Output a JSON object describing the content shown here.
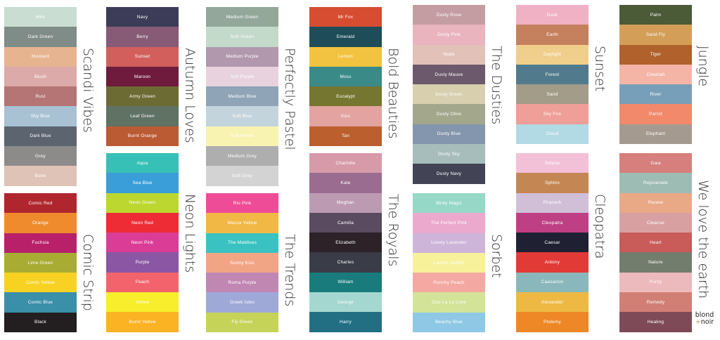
{
  "groups": [
    {
      "title": "Scandi Vibes",
      "swatches": [
        {
          "name": "Mint",
          "color": "#c9ddd3"
        },
        {
          "name": "Dark Green",
          "color": "#7f8c88"
        },
        {
          "name": "Mustard",
          "color": "#e6b48f"
        },
        {
          "name": "Blush",
          "color": "#dcaaa8"
        },
        {
          "name": "Rust",
          "color": "#b47574"
        },
        {
          "name": "Sky Blue",
          "color": "#a8c2d3"
        },
        {
          "name": "Dark Blue",
          "color": "#5c6470"
        },
        {
          "name": "Grey",
          "color": "#8d8b89"
        },
        {
          "name": "Bone",
          "color": "#dfc3b6"
        }
      ]
    },
    {
      "title": "Comic Strip",
      "swatches": [
        {
          "name": "Comic Red",
          "color": "#b0262e"
        },
        {
          "name": "Orange",
          "color": "#ef8b2c"
        },
        {
          "name": "Fuchsia",
          "color": "#b8216a"
        },
        {
          "name": "Lime Green",
          "color": "#a9ac33"
        },
        {
          "name": "Comic Yellow",
          "color": "#f7d223"
        },
        {
          "name": "Comic Blue",
          "color": "#3a8fa9"
        },
        {
          "name": "Black",
          "color": "#231f20"
        }
      ]
    },
    {
      "title": "Autumn Loves",
      "swatches": [
        {
          "name": "Navy",
          "color": "#3c3c59"
        },
        {
          "name": "Berry",
          "color": "#875a76"
        },
        {
          "name": "Sunset",
          "color": "#d25f5b"
        },
        {
          "name": "Maroon",
          "color": "#6f1b3d"
        },
        {
          "name": "Army Green",
          "color": "#6d6b34"
        },
        {
          "name": "Leaf Green",
          "color": "#5f7264"
        },
        {
          "name": "Burnt Orange",
          "color": "#bb5b33"
        }
      ]
    },
    {
      "title": "Neon Lights",
      "swatches": [
        {
          "name": "Aqua",
          "color": "#37c0b6"
        },
        {
          "name": "Sea Blue",
          "color": "#3a9ed8"
        },
        {
          "name": "Neon Green",
          "color": "#bcd72f"
        },
        {
          "name": "Neon Red",
          "color": "#ee2c36"
        },
        {
          "name": "Neon Pink",
          "color": "#db3d96"
        },
        {
          "name": "Purple",
          "color": "#8b56a4"
        },
        {
          "name": "Peach",
          "color": "#f3636b"
        },
        {
          "name": "Yellow",
          "color": "#f8ee2b"
        },
        {
          "name": "Burnt Yellow",
          "color": "#fbb223"
        }
      ]
    },
    {
      "title": "Perfectly Pastel",
      "swatches": [
        {
          "name": "Medium Green",
          "color": "#93a899"
        },
        {
          "name": "Soft Green",
          "color": "#c3d9ca"
        },
        {
          "name": "Medium Purple",
          "color": "#b198ad"
        },
        {
          "name": "Soft Purple",
          "color": "#e7d2dd"
        },
        {
          "name": "Medium Blue",
          "color": "#8fa4b7"
        },
        {
          "name": "Soft Blue",
          "color": "#c3d4dc"
        },
        {
          "name": "Soft Yellow",
          "color": "#f8f3b0"
        },
        {
          "name": "Medium Grey",
          "color": "#aeaeae"
        },
        {
          "name": "Soft Grey",
          "color": "#d3d3d3"
        }
      ]
    },
    {
      "title": "The Trends",
      "swatches": [
        {
          "name": "Rio Pink",
          "color": "#ee4c97"
        },
        {
          "name": "Mecca Yellow",
          "color": "#f1b845"
        },
        {
          "name": "The Maldives",
          "color": "#3ac2c2"
        },
        {
          "name": "Sunny Kiss",
          "color": "#f2a585"
        },
        {
          "name": "Roma Purple",
          "color": "#c087b3"
        },
        {
          "name": "Greek Isles",
          "color": "#9fa9d7"
        },
        {
          "name": "Fiji Green",
          "color": "#c6d359"
        }
      ]
    },
    {
      "title": "Bold Beauties",
      "swatches": [
        {
          "name": "Mr Fox",
          "color": "#d64d32"
        },
        {
          "name": "Emerald",
          "color": "#1e4d59"
        },
        {
          "name": "Lemon",
          "color": "#f1c340"
        },
        {
          "name": "Moss",
          "color": "#3a8a88"
        },
        {
          "name": "Eucalypt",
          "color": "#75762f"
        },
        {
          "name": "Kiss",
          "color": "#e3a3a0"
        },
        {
          "name": "Tan",
          "color": "#bb5f2e"
        }
      ]
    },
    {
      "title": "The Royals",
      "swatches": [
        {
          "name": "Charlotte",
          "color": "#d79aa8"
        },
        {
          "name": "Kate",
          "color": "#9a6c8f"
        },
        {
          "name": "Meghan",
          "color": "#bc9bb2"
        },
        {
          "name": "Camilla",
          "color": "#5b4b60"
        },
        {
          "name": "Elizabeth",
          "color": "#2c2227"
        },
        {
          "name": "Charles",
          "color": "#3a3c47"
        },
        {
          "name": "William",
          "color": "#1a7b7d"
        },
        {
          "name": "George",
          "color": "#a5d7d1"
        },
        {
          "name": "Harry",
          "color": "#226f84"
        }
      ]
    },
    {
      "title": "The Dusties",
      "swatches": [
        {
          "name": "Dusty Rose",
          "color": "#c49da2"
        },
        {
          "name": "Dusty Pink",
          "color": "#e9b4bd"
        },
        {
          "name": "Nude",
          "color": "#e2c2b8"
        },
        {
          "name": "Dusty Mauve",
          "color": "#6c5a6c"
        },
        {
          "name": "Dusty Green",
          "color": "#d7cfae"
        },
        {
          "name": "Dusty Olive",
          "color": "#a3a78b"
        },
        {
          "name": "Dusty Blue",
          "color": "#8496ad"
        },
        {
          "name": "Dusty Sky",
          "color": "#a6bdbb"
        },
        {
          "name": "Dusty Navy",
          "color": "#424456"
        }
      ]
    },
    {
      "title": "Sorbet",
      "swatches": [
        {
          "name": "Minty Magic",
          "color": "#96d8c8"
        },
        {
          "name": "The Perfect Pink",
          "color": "#eba9cd"
        },
        {
          "name": "Lovely Lavender",
          "color": "#cdb5da"
        },
        {
          "name": "Lemon Sorbet",
          "color": "#f6f19a"
        },
        {
          "name": "Punchy Peach",
          "color": "#f3a9a1"
        },
        {
          "name": "Ooo La La Lime",
          "color": "#d3e398"
        },
        {
          "name": "Beachy Blue",
          "color": "#8ec8e4"
        }
      ]
    },
    {
      "title": "Sunset",
      "swatches": [
        {
          "name": "Dusk",
          "color": "#f0b1c5"
        },
        {
          "name": "Earth",
          "color": "#c5805d"
        },
        {
          "name": "Daylight",
          "color": "#f0ce8b"
        },
        {
          "name": "Forest",
          "color": "#517b8c"
        },
        {
          "name": "Sand",
          "color": "#a39c88"
        },
        {
          "name": "Sky Fire",
          "color": "#ef9e98"
        },
        {
          "name": "Cloud",
          "color": "#b2dae4"
        }
      ]
    },
    {
      "title": "Cleopatra",
      "swatches": [
        {
          "name": "Selene",
          "color": "#f3c1d7"
        },
        {
          "name": "Sphinx",
          "color": "#c48753"
        },
        {
          "name": "Pharaoh",
          "color": "#d1bfd8"
        },
        {
          "name": "Cleopatra",
          "color": "#be3f84"
        },
        {
          "name": "Caesar",
          "color": "#1f2132"
        },
        {
          "name": "Antony",
          "color": "#e23a37"
        },
        {
          "name": "Caesarion",
          "color": "#8ab7bb"
        },
        {
          "name": "Alexander",
          "color": "#eeb943"
        },
        {
          "name": "Ptolemy",
          "color": "#ee8726"
        }
      ]
    },
    {
      "title": "Jungle",
      "swatches": [
        {
          "name": "Palm",
          "color": "#4b5a37"
        },
        {
          "name": "Sand Fly",
          "color": "#d39f58"
        },
        {
          "name": "Tiger",
          "color": "#b1612c"
        },
        {
          "name": "Cheetah",
          "color": "#f5b5a6"
        },
        {
          "name": "River",
          "color": "#789fb9"
        },
        {
          "name": "Parrot",
          "color": "#f1896a"
        },
        {
          "name": "Elephant",
          "color": "#a49a90"
        }
      ]
    },
    {
      "title": "We love the earth",
      "swatches": [
        {
          "name": "Gaia",
          "color": "#d67f7c"
        },
        {
          "name": "Rejuvenate",
          "color": "#9dbcb3"
        },
        {
          "name": "Renew",
          "color": "#e9a886"
        },
        {
          "name": "Cleanse",
          "color": "#d9a0a2"
        },
        {
          "name": "Heart",
          "color": "#c95b59"
        },
        {
          "name": "Nature",
          "color": "#737d6e"
        },
        {
          "name": "Purity",
          "color": "#ecb9bd"
        },
        {
          "name": "Remedy",
          "color": "#d17f75"
        },
        {
          "name": "Healing",
          "color": "#7f4a58"
        }
      ]
    }
  ],
  "logo": {
    "line1": "blond",
    "plus": "+",
    "line2": "noir"
  }
}
